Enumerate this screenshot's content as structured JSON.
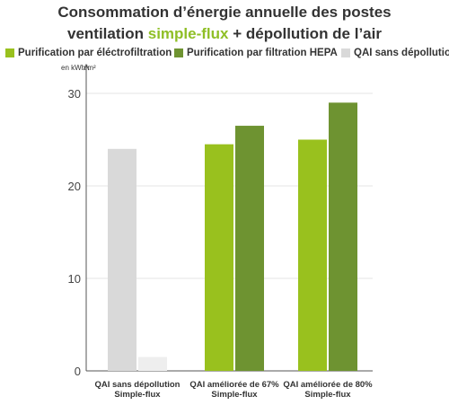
{
  "chart_data": {
    "type": "bar",
    "title_parts": {
      "line1": "Consommation d’énergie annuelle des postes",
      "line2_pre": "ventilation ",
      "line2_highlight": "simple-flux",
      "line2_post": " + dépollution de l’air"
    },
    "ylabel": "en kWh/m²",
    "ylim": [
      0,
      30
    ],
    "yticks": [
      0,
      10,
      20,
      30
    ],
    "grid": true,
    "legend_position": "top",
    "categories": [
      [
        "QAI sans dépollution",
        "Simple-flux"
      ],
      [
        "QAI améliorée de 67%",
        "Simple-flux"
      ],
      [
        "QAI améliorée de 80%",
        "Simple-flux"
      ]
    ],
    "series": [
      {
        "name": "Purification par éléctrofiltration",
        "color": "#99c11e"
      },
      {
        "name": "Purification par filtration HEPA",
        "color": "#6e9331"
      },
      {
        "name": "QAI sans dépollution",
        "color": "#d9d9d9"
      }
    ],
    "bars": [
      {
        "category": 0,
        "slot": 0,
        "value": 24,
        "color": "#d9d9d9"
      },
      {
        "category": 0,
        "slot": 1,
        "value": 1.5,
        "color": "#eeeeee"
      },
      {
        "category": 1,
        "slot": 0,
        "value": 24.5,
        "color": "#99c11e"
      },
      {
        "category": 1,
        "slot": 1,
        "value": 26.5,
        "color": "#6e9331"
      },
      {
        "category": 2,
        "slot": 0,
        "value": 25,
        "color": "#99c11e"
      },
      {
        "category": 2,
        "slot": 1,
        "value": 29,
        "color": "#6e9331"
      }
    ]
  }
}
